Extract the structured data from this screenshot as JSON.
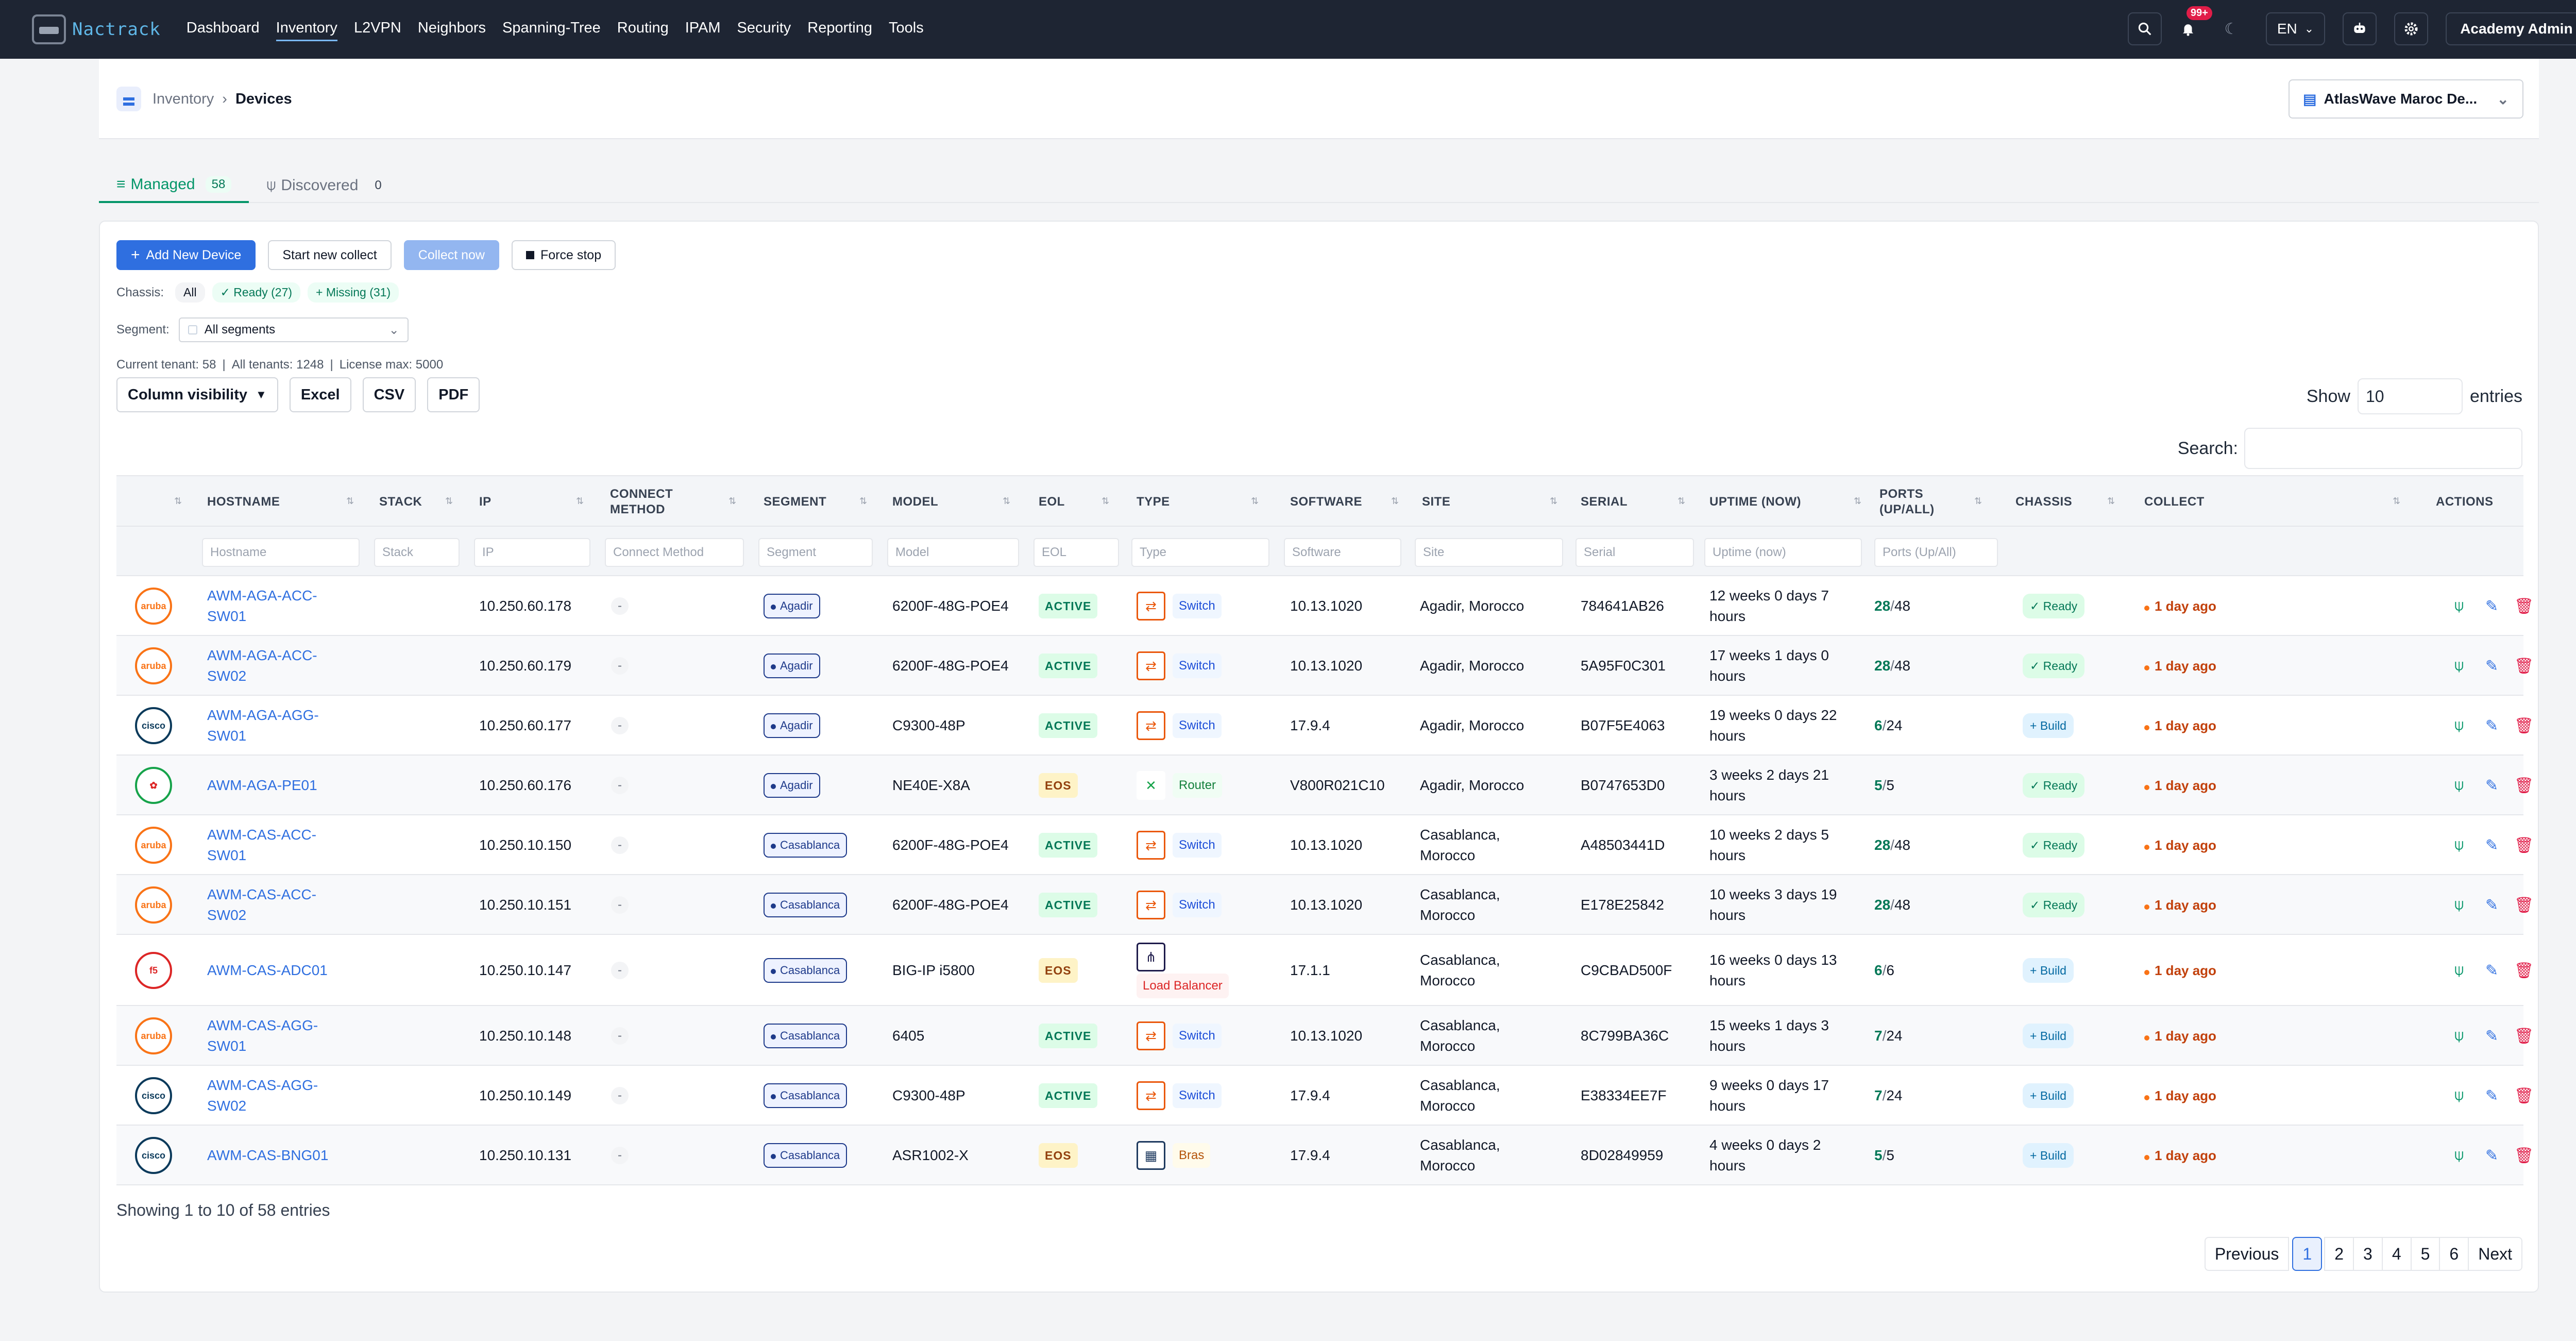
{
  "app": {
    "name": "Nactrack"
  },
  "nav": [
    "Dashboard",
    "Inventory",
    "L2VPN",
    "Neighbors",
    "Spanning-Tree",
    "Routing",
    "IPAM",
    "Security",
    "Reporting",
    "Tools"
  ],
  "topbar": {
    "notif_badge": "99+",
    "lang": "EN",
    "user": "Academy Admin"
  },
  "breadcrumb": {
    "parent": "Inventory",
    "current": "Devices"
  },
  "tenant": "AtlasWave Maroc De...",
  "tabs": [
    {
      "label": "Managed",
      "count": "58"
    },
    {
      "label": "Discovered",
      "count": "0"
    }
  ],
  "actions": {
    "add": "Add New Device",
    "start": "Start new collect",
    "collect": "Collect now",
    "stop": "Force stop"
  },
  "chassis_filter": {
    "label": "Chassis:",
    "all": "All",
    "ready": "Ready (27)",
    "missing": "Missing (31)"
  },
  "segment_filter": {
    "label": "Segment:",
    "value": "All segments"
  },
  "license": {
    "current": "Current tenant: 58",
    "all": "All tenants: 1248",
    "max": "License max: 5000"
  },
  "dt_buttons": {
    "colvis": "Column visibility",
    "excel": "Excel",
    "csv": "CSV",
    "pdf": "PDF"
  },
  "length": {
    "show": "Show",
    "value": "10",
    "entries": "entries"
  },
  "search_label": "Search:",
  "columns": [
    "HOSTNAME",
    "STACK",
    "IP",
    "CONNECT METHOD",
    "SEGMENT",
    "MODEL",
    "EOL",
    "TYPE",
    "SOFTWARE",
    "SITE",
    "SERIAL",
    "UPTIME (NOW)",
    "PORTS (UP/ALL)",
    "CHASSIS",
    "COLLECT",
    "ACTIONS"
  ],
  "filters": [
    "Hostname",
    "Stack",
    "IP",
    "Connect Method",
    "Segment",
    "Model",
    "EOL",
    "Type",
    "Software",
    "Site",
    "Serial",
    "Uptime (now)",
    "Ports (Up/All)"
  ],
  "rows": [
    {
      "vendor": "aruba",
      "host": [
        "AWM-AGA-ACC-",
        "SW01"
      ],
      "ip": "10.250.60.178",
      "cm": "-",
      "seg": "Agadir",
      "model": "6200F-48G-POE4",
      "eol": "ACTIVE",
      "type": "Switch",
      "sw": "10.13.1020",
      "site": [
        "Agadir, Morocco"
      ],
      "serial": "784641AB26",
      "uptime": [
        "12 weeks 0 days 7",
        "hours"
      ],
      "up": "28",
      "all": "48",
      "chassis": "Ready",
      "collect": "1 day ago"
    },
    {
      "vendor": "aruba",
      "host": [
        "AWM-AGA-ACC-",
        "SW02"
      ],
      "ip": "10.250.60.179",
      "cm": "-",
      "seg": "Agadir",
      "model": "6200F-48G-POE4",
      "eol": "ACTIVE",
      "type": "Switch",
      "sw": "10.13.1020",
      "site": [
        "Agadir, Morocco"
      ],
      "serial": "5A95F0C301",
      "uptime": [
        "17 weeks 1 days 0",
        "hours"
      ],
      "up": "28",
      "all": "48",
      "chassis": "Ready",
      "collect": "1 day ago"
    },
    {
      "vendor": "cisco",
      "host": [
        "AWM-AGA-AGG-",
        "SW01"
      ],
      "ip": "10.250.60.177",
      "cm": "-",
      "seg": "Agadir",
      "model": "C9300-48P",
      "eol": "ACTIVE",
      "type": "Switch",
      "sw": "17.9.4",
      "site": [
        "Agadir, Morocco"
      ],
      "serial": "B07F5E4063",
      "uptime": [
        "19 weeks 0 days 22",
        "hours"
      ],
      "up": "6",
      "all": "24",
      "chassis": "Build",
      "collect": "1 day ago"
    },
    {
      "vendor": "huawei",
      "host": [
        "AWM-AGA-PE01"
      ],
      "ip": "10.250.60.176",
      "cm": "-",
      "seg": "Agadir",
      "model": "NE40E-X8A",
      "eol": "EOS",
      "type": "Router",
      "sw": "V800R021C10",
      "site": [
        "Agadir, Morocco"
      ],
      "serial": "B0747653D0",
      "uptime": [
        "3 weeks 2 days 21",
        "hours"
      ],
      "up": "5",
      "all": "5",
      "chassis": "Ready",
      "collect": "1 day ago"
    },
    {
      "vendor": "aruba",
      "host": [
        "AWM-CAS-ACC-",
        "SW01"
      ],
      "ip": "10.250.10.150",
      "cm": "-",
      "seg": "Casablanca",
      "model": "6200F-48G-POE4",
      "eol": "ACTIVE",
      "type": "Switch",
      "sw": "10.13.1020",
      "site": [
        "Casablanca,",
        "Morocco"
      ],
      "serial": "A48503441D",
      "uptime": [
        "10 weeks 2 days 5",
        "hours"
      ],
      "up": "28",
      "all": "48",
      "chassis": "Ready",
      "collect": "1 day ago"
    },
    {
      "vendor": "aruba",
      "host": [
        "AWM-CAS-ACC-",
        "SW02"
      ],
      "ip": "10.250.10.151",
      "cm": "-",
      "seg": "Casablanca",
      "model": "6200F-48G-POE4",
      "eol": "ACTIVE",
      "type": "Switch",
      "sw": "10.13.1020",
      "site": [
        "Casablanca,",
        "Morocco"
      ],
      "serial": "E178E25842",
      "uptime": [
        "10 weeks 3 days 19",
        "hours"
      ],
      "up": "28",
      "all": "48",
      "chassis": "Ready",
      "collect": "1 day ago"
    },
    {
      "vendor": "f5",
      "host": [
        "AWM-CAS-ADC01"
      ],
      "ip": "10.250.10.147",
      "cm": "-",
      "seg": "Casablanca",
      "model": "BIG-IP i5800",
      "eol": "EOS",
      "type": "Load Balancer",
      "sw": "17.1.1",
      "site": [
        "Casablanca,",
        "Morocco"
      ],
      "serial": "C9CBAD500F",
      "uptime": [
        "16 weeks 0 days 13",
        "hours"
      ],
      "up": "6",
      "all": "6",
      "chassis": "Build",
      "collect": "1 day ago"
    },
    {
      "vendor": "aruba",
      "host": [
        "AWM-CAS-AGG-",
        "SW01"
      ],
      "ip": "10.250.10.148",
      "cm": "-",
      "seg": "Casablanca",
      "model": "6405",
      "eol": "ACTIVE",
      "type": "Switch",
      "sw": "10.13.1020",
      "site": [
        "Casablanca,",
        "Morocco"
      ],
      "serial": "8C799BA36C",
      "uptime": [
        "15 weeks 1 days 3",
        "hours"
      ],
      "up": "7",
      "all": "24",
      "chassis": "Build",
      "collect": "1 day ago"
    },
    {
      "vendor": "cisco",
      "host": [
        "AWM-CAS-AGG-",
        "SW02"
      ],
      "ip": "10.250.10.149",
      "cm": "-",
      "seg": "Casablanca",
      "model": "C9300-48P",
      "eol": "ACTIVE",
      "type": "Switch",
      "sw": "17.9.4",
      "site": [
        "Casablanca,",
        "Morocco"
      ],
      "serial": "E38334EE7F",
      "uptime": [
        "9 weeks 0 days 17",
        "hours"
      ],
      "up": "7",
      "all": "24",
      "chassis": "Build",
      "collect": "1 day ago"
    },
    {
      "vendor": "cisco",
      "host": [
        "AWM-CAS-BNG01"
      ],
      "ip": "10.250.10.131",
      "cm": "-",
      "seg": "Casablanca",
      "model": "ASR1002-X",
      "eol": "EOS",
      "type": "Bras",
      "sw": "17.9.4",
      "site": [
        "Casablanca,",
        "Morocco"
      ],
      "serial": "8D02849959",
      "uptime": [
        "4 weeks 0 days 2",
        "hours"
      ],
      "up": "5",
      "all": "5",
      "chassis": "Build",
      "collect": "1 day ago"
    }
  ],
  "footer": {
    "info": "Showing 1 to 10 of 58 entries",
    "prev": "Previous",
    "next": "Next",
    "pages": [
      "1",
      "2",
      "3",
      "4",
      "5",
      "6"
    ]
  },
  "colors": {
    "topbar": "#1e2533",
    "primary": "#2f6fe0",
    "success": "#059669",
    "danger": "#e11d48"
  }
}
